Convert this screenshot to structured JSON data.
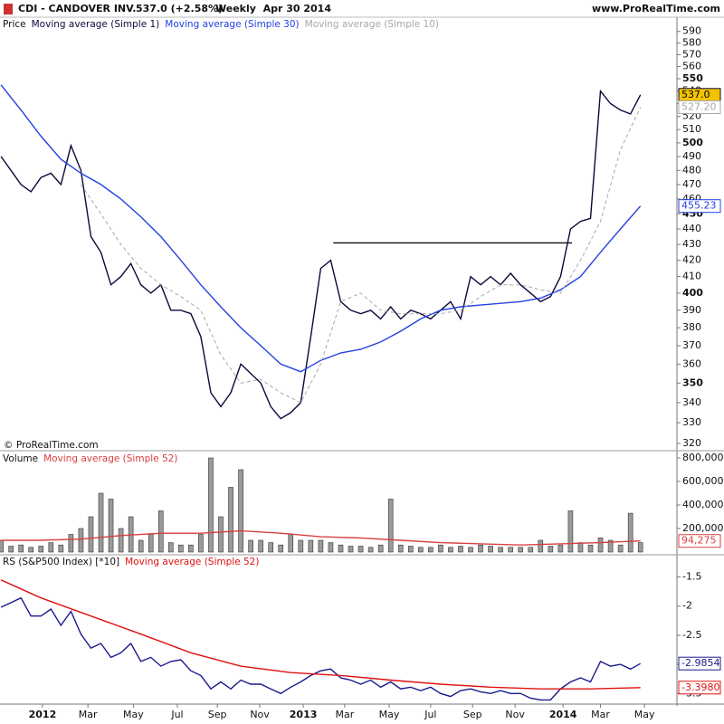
{
  "header": {
    "title": "CDI - CANDOVER INV.",
    "change": "537.0 (+2.58%)",
    "period": "Weekly  Apr 30 2014",
    "site": "www.ProRealTime.com",
    "copyright": "© ProRealTime.com"
  },
  "chart_data": [
    {
      "type": "line",
      "legend_prefix": "Price",
      "log": true,
      "ylim": [
        317,
        589
      ],
      "xlim": [
        -0.2,
        135.3
      ],
      "yticks": [
        320,
        330,
        340,
        350,
        360,
        370,
        380,
        390,
        400,
        410,
        420,
        430,
        440,
        450,
        460,
        470,
        480,
        490,
        500,
        510,
        520,
        530,
        540,
        550,
        560,
        570,
        580,
        590
      ],
      "level": 431,
      "level_x": [
        66.5,
        114.3
      ],
      "series": [
        {
          "name": "Moving average (Simple 1)",
          "color": "#0a0a3c",
          "last_label": "537.0",
          "box": "#f2c200",
          "x": [
            0,
            2,
            4,
            6,
            8,
            10,
            12,
            14,
            16,
            18,
            20,
            22,
            24,
            26,
            28,
            30,
            32,
            34,
            36,
            38,
            40,
            42,
            44,
            46,
            48,
            50,
            52,
            54,
            56,
            58,
            60,
            62,
            64,
            66,
            68,
            70,
            72,
            74,
            76,
            78,
            80,
            82,
            84,
            86,
            88,
            90,
            92,
            94,
            96,
            98,
            100,
            102,
            104,
            106,
            108,
            110,
            112,
            114,
            116,
            118,
            120,
            122,
            124,
            126,
            128
          ],
          "values": [
            490,
            480,
            470,
            465,
            475,
            478,
            470,
            498,
            480,
            435,
            425,
            405,
            410,
            418,
            405,
            400,
            405,
            390,
            390,
            388,
            375,
            345,
            338,
            345,
            360,
            355,
            350,
            338,
            332,
            335,
            340,
            375,
            415,
            420,
            395,
            390,
            388,
            390,
            385,
            392,
            385,
            390,
            388,
            385,
            390,
            395,
            385,
            410,
            405,
            410,
            405,
            412,
            405,
            400,
            395,
            398,
            410,
            440,
            445,
            447,
            540,
            530,
            525,
            522,
            537
          ]
        },
        {
          "name": "Moving average (Simple 30)",
          "color": "#2340e0",
          "last_label": "455.23",
          "box": "#ffffff",
          "x": [
            0,
            4,
            8,
            12,
            16,
            20,
            24,
            28,
            32,
            36,
            40,
            44,
            48,
            52,
            56,
            60,
            64,
            68,
            72,
            76,
            80,
            84,
            88,
            92,
            96,
            100,
            104,
            108,
            112,
            116,
            120,
            124,
            128
          ],
          "values": [
            545,
            525,
            505,
            488,
            478,
            470,
            460,
            448,
            435,
            420,
            405,
            392,
            380,
            370,
            360,
            356,
            362,
            366,
            368,
            372,
            378,
            385,
            390,
            392,
            393,
            394,
            395,
            397,
            402,
            410,
            425,
            440,
            455.23
          ]
        },
        {
          "name": "Moving average (Simple 10)",
          "color": "#a8a8a8",
          "dashed": true,
          "last_label": "527.20",
          "box": "#ffffff",
          "x": [
            16,
            20,
            24,
            28,
            32,
            36,
            40,
            44,
            48,
            52,
            56,
            60,
            64,
            68,
            72,
            76,
            80,
            84,
            88,
            92,
            96,
            100,
            104,
            108,
            112,
            116,
            120,
            124,
            128
          ],
          "values": [
            470,
            450,
            430,
            415,
            405,
            398,
            390,
            365,
            350,
            352,
            345,
            340,
            360,
            395,
            400,
            390,
            388,
            388,
            388,
            390,
            398,
            405,
            405,
            402,
            400,
            420,
            445,
            495,
            527.2
          ]
        }
      ]
    },
    {
      "type": "bar",
      "legend_prefix": "Volume",
      "ylim": [
        0,
        846000
      ],
      "xlim": [
        -0.2,
        135.3
      ],
      "yticks": [
        {
          "value": 200000,
          "label": "200,000"
        },
        {
          "value": 400000,
          "label": "400,000"
        },
        {
          "value": 600000,
          "label": "600,000"
        },
        {
          "value": 800000,
          "label": "800,000"
        }
      ],
      "series": [
        {
          "name": null,
          "type": "bar",
          "color": "#9a9a9a",
          "x": [
            0,
            2,
            4,
            6,
            8,
            10,
            12,
            14,
            16,
            18,
            20,
            22,
            24,
            26,
            28,
            30,
            32,
            34,
            36,
            38,
            40,
            42,
            44,
            46,
            48,
            50,
            52,
            54,
            56,
            58,
            60,
            62,
            64,
            66,
            68,
            70,
            72,
            74,
            76,
            78,
            80,
            82,
            84,
            86,
            88,
            90,
            92,
            94,
            96,
            98,
            100,
            102,
            104,
            106,
            108,
            110,
            112,
            114,
            116,
            118,
            120,
            122,
            124,
            126,
            128
          ],
          "values": [
            100000,
            50000,
            60000,
            40000,
            50000,
            80000,
            60000,
            150000,
            200000,
            300000,
            500000,
            450000,
            200000,
            300000,
            100000,
            150000,
            350000,
            80000,
            60000,
            60000,
            150000,
            800000,
            300000,
            550000,
            700000,
            100000,
            100000,
            80000,
            60000,
            150000,
            100000,
            100000,
            100000,
            80000,
            60000,
            50000,
            50000,
            40000,
            60000,
            450000,
            60000,
            50000,
            40000,
            40000,
            60000,
            40000,
            50000,
            40000,
            60000,
            50000,
            40000,
            40000,
            40000,
            40000,
            100000,
            50000,
            60000,
            350000,
            80000,
            60000,
            120000,
            100000,
            60000,
            330000,
            80000
          ]
        },
        {
          "name": "Moving average (Simple 52)",
          "type": "line",
          "color": "#d84040",
          "last_label": "94,275",
          "box": "#ffffff",
          "x": [
            0,
            8,
            16,
            24,
            32,
            40,
            48,
            56,
            64,
            72,
            80,
            88,
            96,
            104,
            112,
            120,
            128
          ],
          "values": [
            100000,
            100000,
            110000,
            140000,
            160000,
            160000,
            180000,
            160000,
            130000,
            120000,
            100000,
            80000,
            70000,
            60000,
            70000,
            80000,
            94275
          ]
        }
      ]
    },
    {
      "type": "line",
      "legend_prefix": "RS (S&P500 Index) [*10]",
      "ylim": [
        -3.65,
        -1.15
      ],
      "xlim": [
        -0.2,
        135.3
      ],
      "yticks": [
        -3.5,
        -3,
        -2.5,
        -2,
        -1.5
      ],
      "xticks": [
        {
          "value": 8.3,
          "label": "2012"
        },
        {
          "value": 17.4,
          "label": "Mar"
        },
        {
          "value": 26.5,
          "label": "May"
        },
        {
          "value": 35.3,
          "label": "Jul"
        },
        {
          "value": 43.3,
          "label": "Sep"
        },
        {
          "value": 51.8,
          "label": "Nov"
        },
        {
          "value": 60.5,
          "label": "2013"
        },
        {
          "value": 68.8,
          "label": "Mar"
        },
        {
          "value": 77.7,
          "label": "May"
        },
        {
          "value": 86,
          "label": "Jul"
        },
        {
          "value": 94.4,
          "label": "Sep"
        },
        {
          "value": 102.9,
          "label": "Nov"
        },
        {
          "value": 112.5,
          "label": "2014"
        },
        {
          "value": 120,
          "label": "Mar"
        },
        {
          "value": 128.8,
          "label": "May"
        }
      ],
      "series": [
        {
          "name": null,
          "color": "#1a1a8c",
          "last_label": "-2.9854",
          "box": "#ffffff",
          "x": [
            0,
            2,
            4,
            6,
            8,
            10,
            12,
            14,
            16,
            18,
            20,
            22,
            24,
            26,
            28,
            30,
            32,
            34,
            36,
            38,
            40,
            42,
            44,
            46,
            48,
            50,
            52,
            54,
            56,
            58,
            60,
            62,
            64,
            66,
            68,
            70,
            72,
            74,
            76,
            78,
            80,
            82,
            84,
            86,
            88,
            90,
            92,
            94,
            96,
            98,
            100,
            102,
            104,
            106,
            108,
            110,
            112,
            114,
            116,
            118,
            120,
            122,
            124,
            126,
            128
          ],
          "values": [
            -2.02,
            -1.94,
            -1.86,
            -2.17,
            -2.17,
            -2.05,
            -2.33,
            -2.09,
            -2.48,
            -2.72,
            -2.64,
            -2.88,
            -2.8,
            -2.64,
            -2.95,
            -2.88,
            -3.03,
            -2.95,
            -2.92,
            -3.11,
            -3.19,
            -3.42,
            -3.3,
            -3.42,
            -3.27,
            -3.34,
            -3.34,
            -3.42,
            -3.5,
            -3.39,
            -3.3,
            -3.19,
            -3.11,
            -3.08,
            -3.23,
            -3.27,
            -3.34,
            -3.27,
            -3.39,
            -3.3,
            -3.42,
            -3.39,
            -3.45,
            -3.39,
            -3.5,
            -3.55,
            -3.45,
            -3.42,
            -3.47,
            -3.5,
            -3.45,
            -3.5,
            -3.5,
            -3.58,
            -3.61,
            -3.61,
            -3.42,
            -3.3,
            -3.23,
            -3.3,
            -2.95,
            -3.03,
            -3,
            -3.08,
            -2.9854
          ]
        },
        {
          "name": "Moving average (Simple 52)",
          "color": "#e01010",
          "last_label": "-3.3980",
          "box": "#ffffff",
          "x": [
            0,
            8,
            18,
            28,
            38,
            48,
            58,
            68,
            78,
            88,
            98,
            108,
            118,
            128
          ],
          "values": [
            -1.55,
            -1.86,
            -2.17,
            -2.48,
            -2.8,
            -3.03,
            -3.14,
            -3.19,
            -3.27,
            -3.34,
            -3.39,
            -3.42,
            -3.42,
            -3.398
          ]
        }
      ]
    }
  ]
}
